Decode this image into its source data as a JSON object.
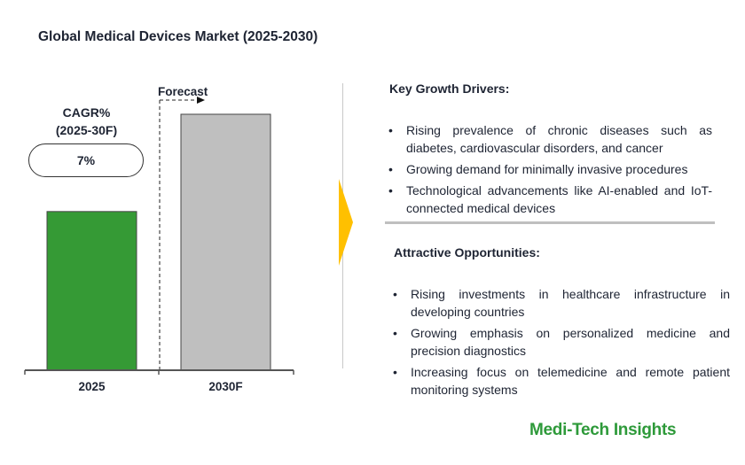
{
  "title": "Global Medical Devices Market (2025-2030)",
  "chart_data": {
    "type": "bar",
    "title": "Global Medical Devices Market (2025-2030)",
    "categories": [
      "2025",
      "2030F"
    ],
    "values": [
      62,
      100
    ],
    "value_note": "relative bar heights (no value labels printed)",
    "colors": [
      "#359a35",
      "#bfbfbf"
    ],
    "forecast_label": "Forecast",
    "cagr_label": "CAGR%",
    "cagr_period": "(2025-30F)",
    "cagr_value": "7%",
    "grid": false
  },
  "drivers": {
    "heading": "Key Growth Drivers:",
    "items": [
      "Rising prevalence of chronic diseases such as diabetes, cardiovascular disorders, and cancer",
      "Growing demand for minimally invasive procedures",
      "Technological advancements like AI-enabled and IoT-connected medical devices"
    ]
  },
  "opportunities": {
    "heading": "Attractive Opportunities:",
    "items": [
      "Rising investments in healthcare infrastructure in developing countries",
      "Growing emphasis on personalized medicine and precision diagnostics",
      "Increasing focus on telemedicine and remote patient monitoring systems"
    ]
  },
  "bullet": "•",
  "brand": "Medi-Tech Insights",
  "accent_arrow_color": "#ffc000",
  "brand_color": "#2e9a3a"
}
